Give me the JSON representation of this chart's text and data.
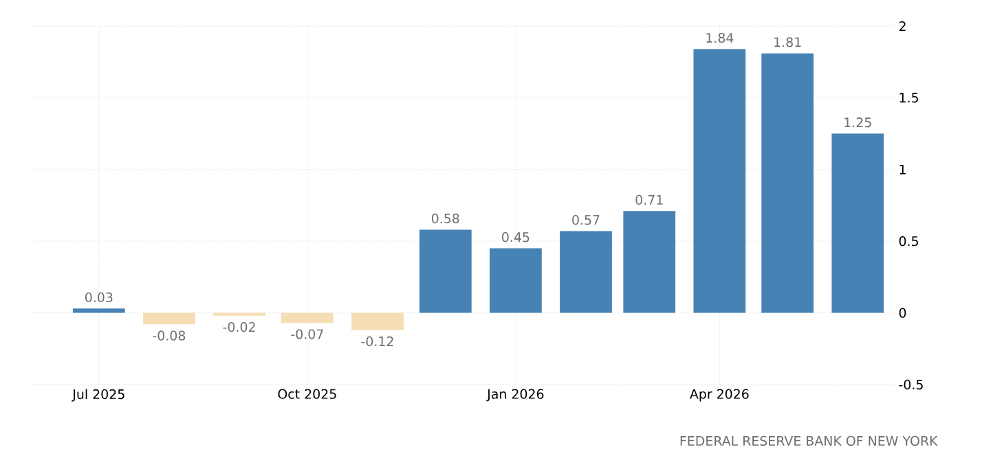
{
  "chart_data": {
    "type": "bar",
    "x": [
      "2025-07",
      "2025-08",
      "2025-09",
      "2025-10",
      "2025-11",
      "2025-12",
      "2026-01",
      "2026-02",
      "2026-03",
      "2026-04",
      "2026-05",
      "2026-06"
    ],
    "values": [
      0.03,
      -0.08,
      -0.02,
      -0.07,
      -0.12,
      0.58,
      0.45,
      0.57,
      0.71,
      1.84,
      1.81,
      1.25
    ],
    "colors": [
      "#4682b4",
      "#f5deb3",
      "#f5deb3",
      "#f5deb3",
      "#f5deb3",
      "#4682b4",
      "#4682b4",
      "#4682b4",
      "#4682b4",
      "#4682b4",
      "#4682b4",
      "#4682b4"
    ],
    "data_labels": true,
    "xlim": [
      "2025-06",
      "2026-06-17"
    ],
    "xticks": [
      {
        "value": "2025-07",
        "label": "Jul 2025"
      },
      {
        "value": "2025-10",
        "label": "Oct 2025"
      },
      {
        "value": "2026-01",
        "label": "Jan 2026"
      },
      {
        "value": "2026-04",
        "label": "Apr 2026"
      }
    ],
    "ylim": [
      -0.5,
      2
    ],
    "yticks": [
      -0.5,
      0,
      0.5,
      1,
      1.5,
      2
    ],
    "grid": true,
    "annotations": [
      "FEDERAL RESERVE BANK OF NEW YORK"
    ]
  }
}
